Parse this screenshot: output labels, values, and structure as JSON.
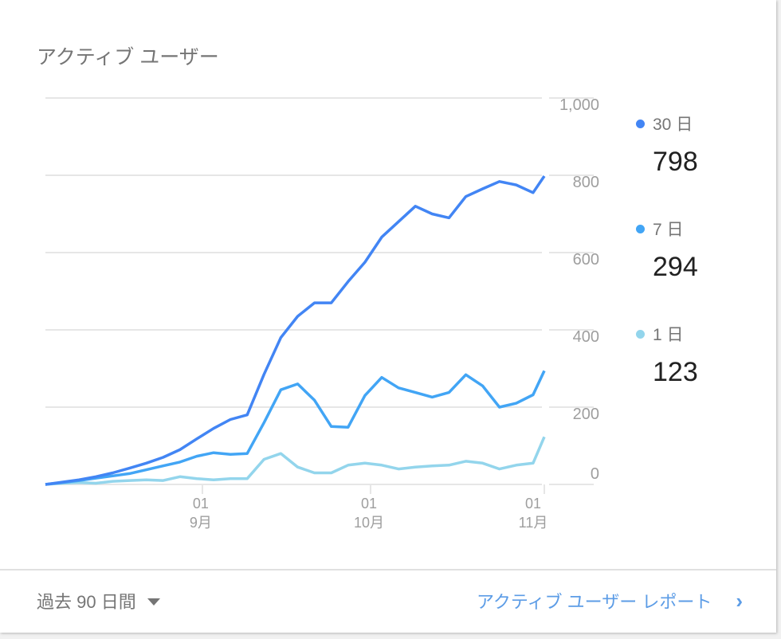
{
  "card": {
    "title": "アクティブ ユーザー"
  },
  "footer": {
    "range_label": "過去 90 日間",
    "report_link": "アクティブ ユーザー レポート",
    "range_icon": "caret-down-icon",
    "link_icon": "chevron-right-icon"
  },
  "legend": [
    {
      "label": "30 日",
      "value": "798",
      "color": "#4285f4"
    },
    {
      "label": "7 日",
      "value": "294",
      "color": "#42a5f5"
    },
    {
      "label": "1 日",
      "value": "123",
      "color": "#93d5ec"
    }
  ],
  "chart_data": {
    "type": "line",
    "ylim": [
      0,
      1000
    ],
    "yticks": [
      "0",
      "200",
      "400",
      "600",
      "800",
      "1,000"
    ],
    "ytick_values": [
      0,
      200,
      400,
      600,
      800,
      1000
    ],
    "xticks": [
      {
        "date": "09-01",
        "day": "01",
        "month": "9月"
      },
      {
        "date": "10-01",
        "day": "01",
        "month": "10月"
      },
      {
        "date": "11-01",
        "day": "01",
        "month": "11月"
      }
    ],
    "grid": true,
    "legend_position": "right",
    "x": [
      "08-04",
      "08-07",
      "08-10",
      "08-13",
      "08-16",
      "08-19",
      "08-22",
      "08-25",
      "08-28",
      "08-31",
      "09-03",
      "09-06",
      "09-09",
      "09-12",
      "09-15",
      "09-18",
      "09-21",
      "09-24",
      "09-27",
      "09-30",
      "10-03",
      "10-06",
      "10-09",
      "10-12",
      "10-15",
      "10-18",
      "10-21",
      "10-24",
      "10-27",
      "10-30",
      "11-01"
    ],
    "series": [
      {
        "name": "30 日",
        "color": "#4285f4",
        "values": [
          0,
          6,
          12,
          20,
          30,
          42,
          55,
          70,
          90,
          118,
          145,
          168,
          180,
          285,
          380,
          435,
          470,
          470,
          525,
          575,
          640,
          680,
          720,
          700,
          690,
          745,
          765,
          784,
          775,
          755,
          798
        ]
      },
      {
        "name": "7 日",
        "color": "#42a5f5",
        "values": [
          0,
          5,
          10,
          16,
          22,
          28,
          38,
          48,
          58,
          73,
          82,
          78,
          80,
          160,
          245,
          260,
          218,
          150,
          148,
          230,
          277,
          250,
          238,
          226,
          238,
          284,
          255,
          200,
          210,
          232,
          294
        ]
      },
      {
        "name": "1 日",
        "color": "#93d5ec",
        "values": [
          0,
          3,
          5,
          3,
          8,
          10,
          12,
          10,
          20,
          15,
          12,
          15,
          15,
          65,
          80,
          45,
          30,
          30,
          50,
          55,
          50,
          40,
          45,
          48,
          50,
          60,
          55,
          40,
          50,
          55,
          123
        ]
      }
    ]
  }
}
